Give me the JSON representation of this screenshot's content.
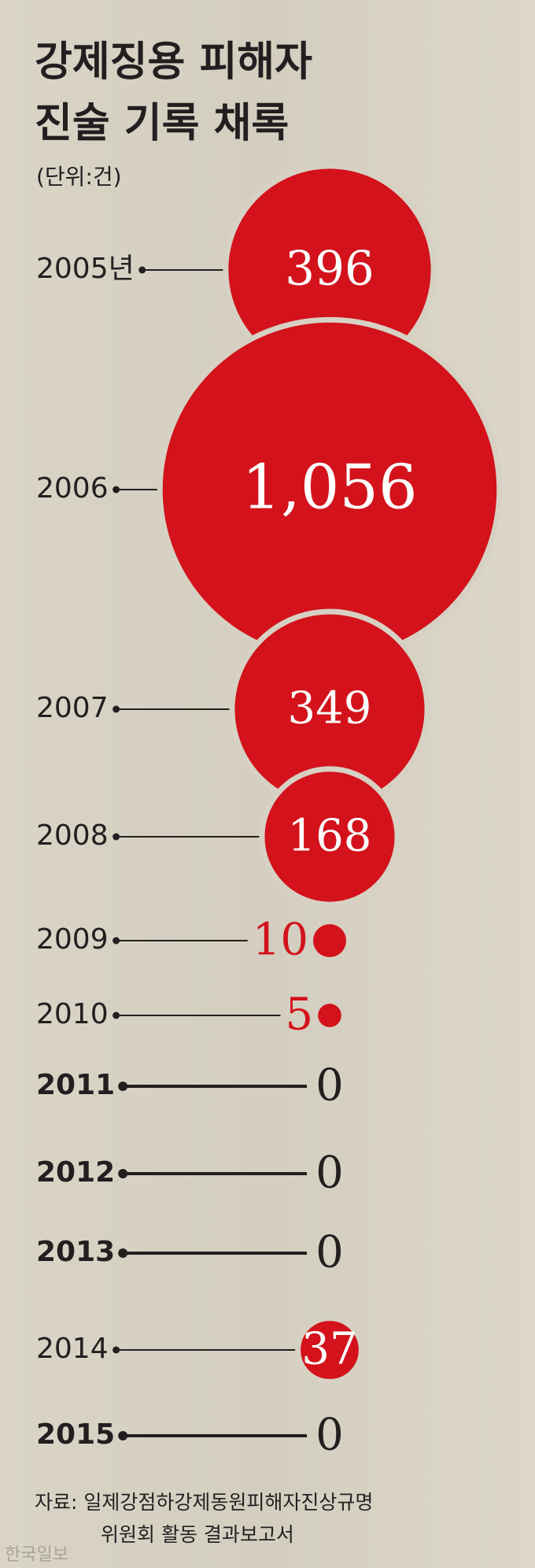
{
  "chart_data": {
    "type": "bubble",
    "title": [
      "강제징용 피해자",
      "진술 기록 채록"
    ],
    "subtitle": "(단위:건)",
    "categories": [
      "2005년",
      "2006",
      "2007",
      "2008",
      "2009",
      "2010",
      "2011",
      "2012",
      "2013",
      "2014",
      "2015"
    ],
    "values": [
      396,
      1056,
      349,
      168,
      10,
      5,
      0,
      0,
      0,
      37,
      0
    ],
    "value_labels": [
      "396",
      "1,056",
      "349",
      "168",
      "10",
      "5",
      "0",
      "0",
      "0",
      "37",
      "0"
    ],
    "color": "#d3121b",
    "source": [
      "자료: 일제강점하강제동원피해자진상규명",
      "위원회 활동 결과보고서"
    ],
    "credit": "한국일보"
  }
}
